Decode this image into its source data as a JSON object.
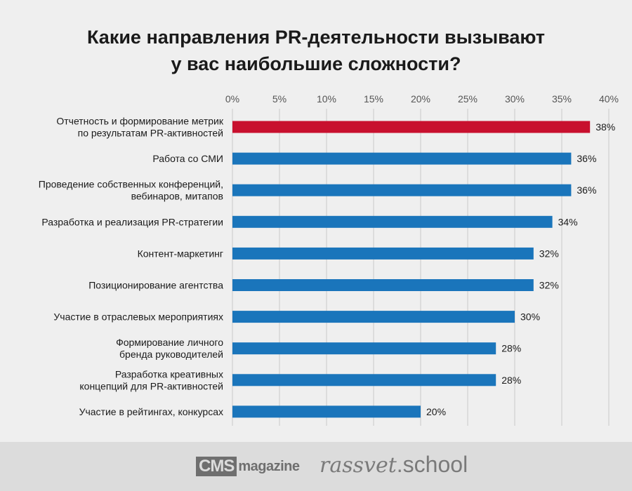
{
  "title": {
    "line1": "Какие направления PR-деятельности вызывают",
    "line2": "у вас наибольшие сложности?"
  },
  "colors": {
    "highlight": "#c8102e",
    "bar": "#1a75bb",
    "grid": "#c8c8c8",
    "text": "#1a1a1a"
  },
  "chart_data": {
    "type": "bar",
    "orientation": "horizontal",
    "categories": [
      "Отчетность и формирование метрик\nпо результатам PR-активностей",
      "Работа со СМИ",
      "Проведение собственных конференций,\nвебинаров, митапов",
      "Разработка и реализация PR-стратегии",
      "Контент-маркетинг",
      "Позиционирование агентства",
      "Участие в отраслевых мероприятиях",
      "Формирование личного\nбренда руководителей",
      "Разработка креативных\nконцепций для PR-активностей",
      "Участие в рейтингах, конкурсах"
    ],
    "values": [
      38,
      36,
      36,
      34,
      32,
      32,
      30,
      28,
      28,
      20
    ],
    "value_labels": [
      "38%",
      "36%",
      "36%",
      "34%",
      "32%",
      "32%",
      "30%",
      "28%",
      "28%",
      "20%"
    ],
    "highlight_index": 0,
    "xlim": [
      0,
      40
    ],
    "ticks": [
      0,
      5,
      10,
      15,
      20,
      25,
      30,
      35,
      40
    ],
    "tick_labels": [
      "0%",
      "5%",
      "10%",
      "15%",
      "20%",
      "25%",
      "30%",
      "35%",
      "40%"
    ],
    "axis_position": "top",
    "grid": true
  },
  "footer": {
    "cms_logo_box": "CMS",
    "cms_logo_text": "magazine",
    "rassvet_a": "rassvet",
    "rassvet_b": ".school"
  }
}
